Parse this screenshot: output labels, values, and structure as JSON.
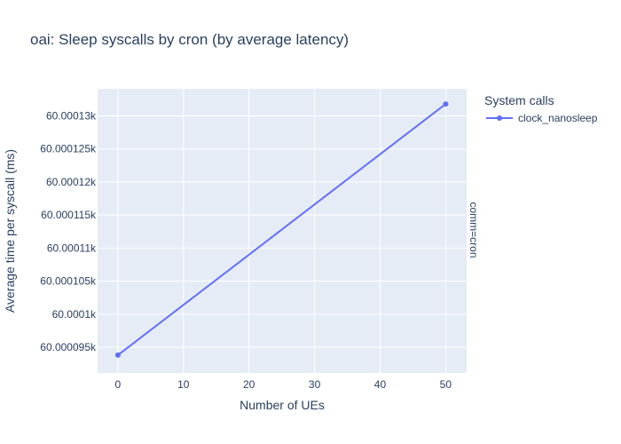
{
  "chart_data": {
    "type": "line",
    "title": "oai: Sleep syscalls by cron (by average latency)",
    "xlabel": "Number of UEs",
    "ylabel": "Average time per syscall (ms)",
    "facet_label": "comm=cron",
    "legend_title": "System calls",
    "legend_position": "top-right",
    "grid": true,
    "xlim": [
      -3.1,
      53.2
    ],
    "ylim": [
      60.0000911,
      60.0001341
    ],
    "x_ticks": [
      0,
      10,
      20,
      30,
      40,
      50
    ],
    "x_tick_labels": [
      "0",
      "10",
      "20",
      "30",
      "40",
      "50"
    ],
    "y_ticks": [
      60.000095,
      60.0001,
      60.000105,
      60.00011,
      60.000115,
      60.00012,
      60.000125,
      60.00013
    ],
    "y_tick_labels": [
      "60.000095k",
      "60.0001k",
      "60.000105k",
      "60.00011k",
      "60.000115k",
      "60.00012k",
      "60.000125k",
      "60.00013k"
    ],
    "series": [
      {
        "name": "clock_nanosleep",
        "color": "#636efa",
        "x": [
          0,
          50
        ],
        "y": [
          60.0000938,
          60.0001318
        ]
      }
    ],
    "plot_background": "#e5ecf6",
    "grid_color": "#ffffff"
  }
}
